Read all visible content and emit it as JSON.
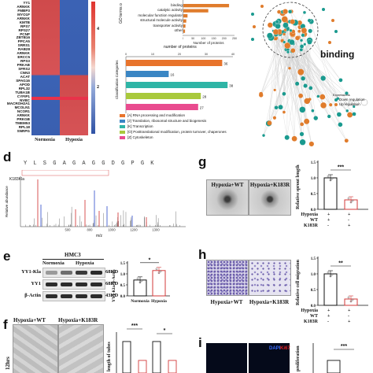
{
  "panels": {
    "d": "d",
    "e": "e",
    "f": "f",
    "g": "g",
    "h": "h",
    "i": "i"
  },
  "heatmap": {
    "genes": [
      "YY1",
      "ARNKK",
      "FMBP3",
      "MYO1F",
      "ARNKK",
      "KMTB",
      "RPS7",
      "RPS27",
      "PCNP",
      "ZBTB16",
      "PPCA5",
      "SRRS1",
      "RAB28",
      "ARNKK",
      "ERCC5",
      "RPS3",
      "PRKAB",
      "SFRS2",
      "CNN3",
      "ACAT",
      "SPAG16",
      "APOD",
      "RPL32",
      "TUBA1B",
      "CYFIP1",
      "NVBC",
      "MACROH2A1",
      "MCOLN1",
      "NCOR1",
      "ARNKK",
      "PRKGB",
      "TMEM53",
      "RPL18",
      "SNRPG"
    ],
    "col_labels": [
      "Normoxia",
      "Hypoxia"
    ],
    "side_labels": [
      "4",
      "2"
    ]
  },
  "go_bar": {
    "ylabel": "GO terms o",
    "categories": [
      "binding",
      "catalytic activity",
      "molecular function regulator",
      "structural molecule activity",
      "transporter activity",
      "other"
    ],
    "xlabel": "Number of proteins",
    "ticks": [
      "0",
      "50",
      "100",
      "150",
      "200",
      "250"
    ],
    "chart_data": {
      "type": "bar",
      "categories": [
        "binding",
        "catalytic activity",
        "molecular function regulator",
        "structural molecule activity",
        "transporter activity",
        "other"
      ],
      "values": [
        220,
        120,
        20,
        14,
        10,
        8
      ],
      "xlim": [
        0,
        250
      ]
    }
  },
  "kog_bar": {
    "title": "number of proteins",
    "ylabel": "Classification Categories",
    "ticks": [
      "0",
      "10",
      "20",
      "30",
      "40"
    ],
    "chart_data": {
      "type": "bar",
      "categories": [
        "[A] RNA processing and modification",
        "[J] Translation, ribosomal structure and biogenesis",
        "[K] Transcription",
        "[O] Posttranslational modification, protein turnover, chaperones",
        "[Z] Cytoskeleton"
      ],
      "values": [
        36,
        16,
        38,
        28,
        27
      ],
      "colors": [
        "#e8742c",
        "#3a86c4",
        "#2eb5a6",
        "#a9c93c",
        "#e94b8f"
      ],
      "xlim": [
        0,
        40
      ]
    }
  },
  "network": {
    "label": "binding",
    "legend": [
      "Expressions",
      "Down regulation",
      "Up regulation"
    ],
    "colors": {
      "down": "#1a9a8f",
      "up": "#e07c2c"
    }
  },
  "ms_spectrum": {
    "sequence": "Y L S G A G A G G D G P G K",
    "peptide": "K183Kla",
    "ylabel": "Relative abundance",
    "xlabel": "m/z",
    "ticks": [
      "500",
      "800",
      "1000",
      "1200",
      "1300"
    ]
  },
  "blot": {
    "cell_line": "HMC3",
    "groups": [
      "Normoxia",
      "Hypoxia"
    ],
    "rows": [
      {
        "name": "YY1-Kla",
        "size": "68KD"
      },
      {
        "name": "YY1",
        "size": "68KD"
      },
      {
        "name": "β-Actin",
        "size": "43KD"
      }
    ]
  },
  "blot_bar": {
    "ylabel": "YY1-Kla/ β-Actin",
    "sig": "*",
    "categories": [
      "Normoxia",
      "Hypoxia"
    ],
    "ticks": [
      "0.0",
      "0.5",
      "1.0",
      "1.5"
    ],
    "chart_data": {
      "type": "bar",
      "categories": [
        "Normoxia",
        "Hypoxia"
      ],
      "values": [
        0.72,
        1.15
      ],
      "ylim": [
        0,
        1.5
      ]
    }
  },
  "sprout": {
    "images": [
      "Hypoxia+WT",
      "Hypoxia+K183R"
    ],
    "ylabel": "Relative sprout length",
    "sig": "***",
    "ticks": [
      "0.0",
      "0.5",
      "1.0",
      "1.5"
    ],
    "table_rows": [
      {
        "name": "Hypoxia",
        "v1": "+",
        "v2": "+"
      },
      {
        "name": "WT",
        "v1": "+",
        "v2": "-"
      },
      {
        "name": "K183R",
        "v1": "-",
        "v2": "+"
      }
    ],
    "chart_data": {
      "type": "bar",
      "categories": [
        "Hypoxia+WT",
        "Hypoxia+K183R"
      ],
      "values": [
        1.0,
        0.3
      ],
      "ylim": [
        0,
        1.5
      ]
    }
  },
  "migration": {
    "images": [
      "Hypoxia+WT",
      "Hypoxia+K183R"
    ],
    "ylabel": "Relative cell migration",
    "sig": "**",
    "ticks": [
      "0.0",
      "0.5",
      "1.0",
      "1.5"
    ],
    "table_rows": [
      {
        "name": "Hypoxia",
        "v1": "+",
        "v2": "+"
      },
      {
        "name": "WT",
        "v1": "+",
        "v2": "-"
      },
      {
        "name": "K183R",
        "v1": "-",
        "v2": "+"
      }
    ],
    "chart_data": {
      "type": "bar",
      "categories": [
        "Hypoxia+WT",
        "Hypoxia+K183R"
      ],
      "values": [
        1.0,
        0.2
      ],
      "ylim": [
        0,
        1.5
      ]
    }
  },
  "tubes": {
    "images": [
      "Hypoxia+WT",
      "Hypoxia+K183R"
    ],
    "side_label": "12hrs",
    "ylabel": "length of tubes",
    "sig1": "***",
    "sig2": "*"
  },
  "panel_i": {
    "dapi": "DAPI",
    "ki67": "Ki67",
    "ylabel": "proliferation",
    "sig": "***"
  }
}
